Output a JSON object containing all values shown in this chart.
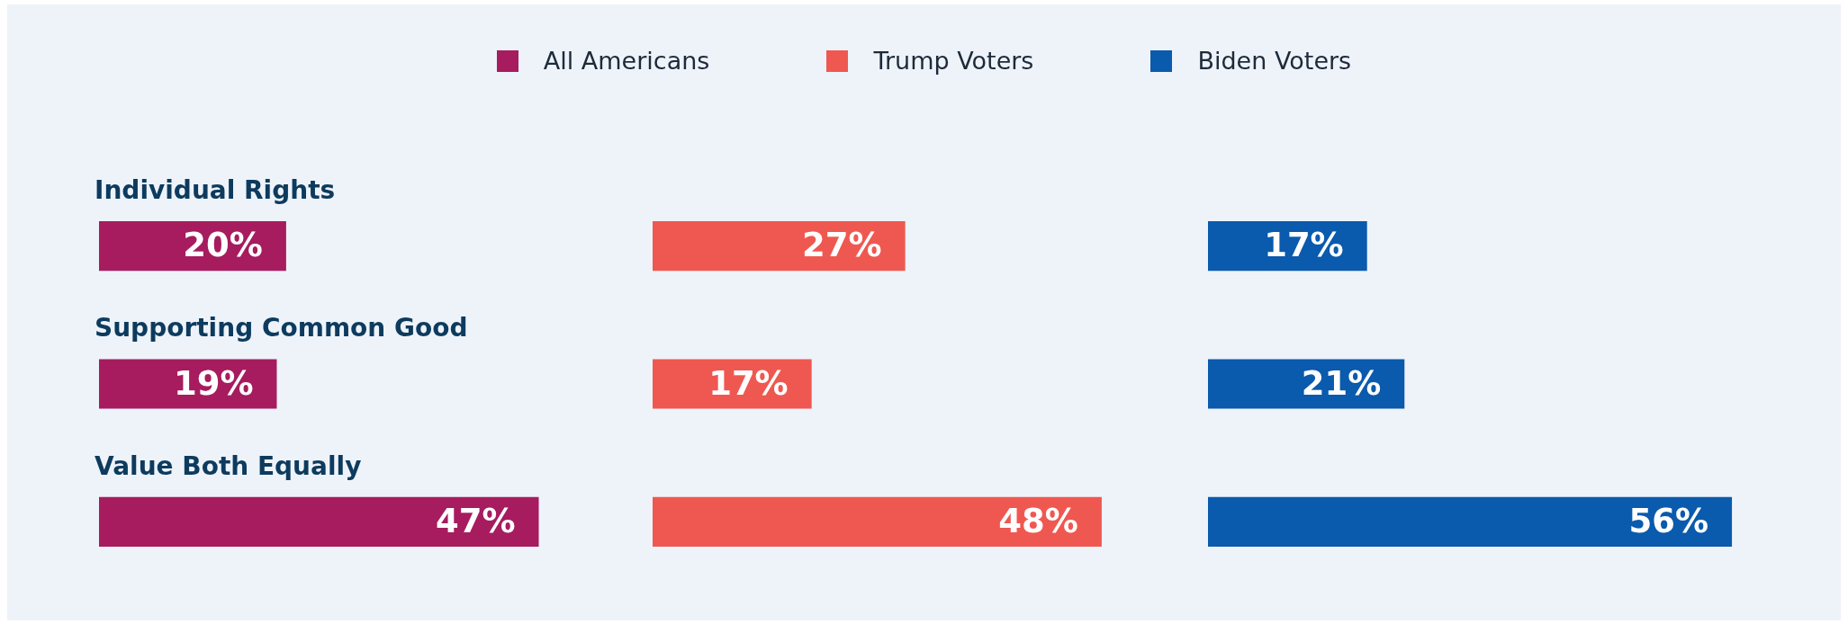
{
  "chart_data": [
    {
      "type": "bar",
      "orientation": "horizontal",
      "legend": "top",
      "categories": [
        "Individual Rights",
        "Supporting Common Good",
        "Value Both Equally"
      ],
      "series": [
        {
          "name": "All Americans",
          "color": "#a61c5f",
          "values": [
            20,
            19,
            47
          ],
          "value_labels": [
            "20%",
            "19%",
            "47%"
          ]
        }
      ]
    },
    {
      "type": "bar",
      "orientation": "horizontal",
      "legend": "top",
      "categories": [
        null,
        null,
        null
      ],
      "series": [
        {
          "name": "Trump Voters",
          "color": "#ef5850",
          "values": [
            27,
            17,
            48
          ],
          "value_labels": [
            "27%",
            "17%",
            "48%"
          ]
        }
      ]
    },
    {
      "type": "bar",
      "orientation": "horizontal",
      "legend": "top",
      "categories": [
        null,
        null,
        null
      ],
      "series": [
        {
          "name": "Biden Voters",
          "color": "#0a5aad",
          "values": [
            17,
            21,
            56
          ],
          "value_labels": [
            "17%",
            "21%",
            "56%"
          ]
        }
      ]
    }
  ]
}
